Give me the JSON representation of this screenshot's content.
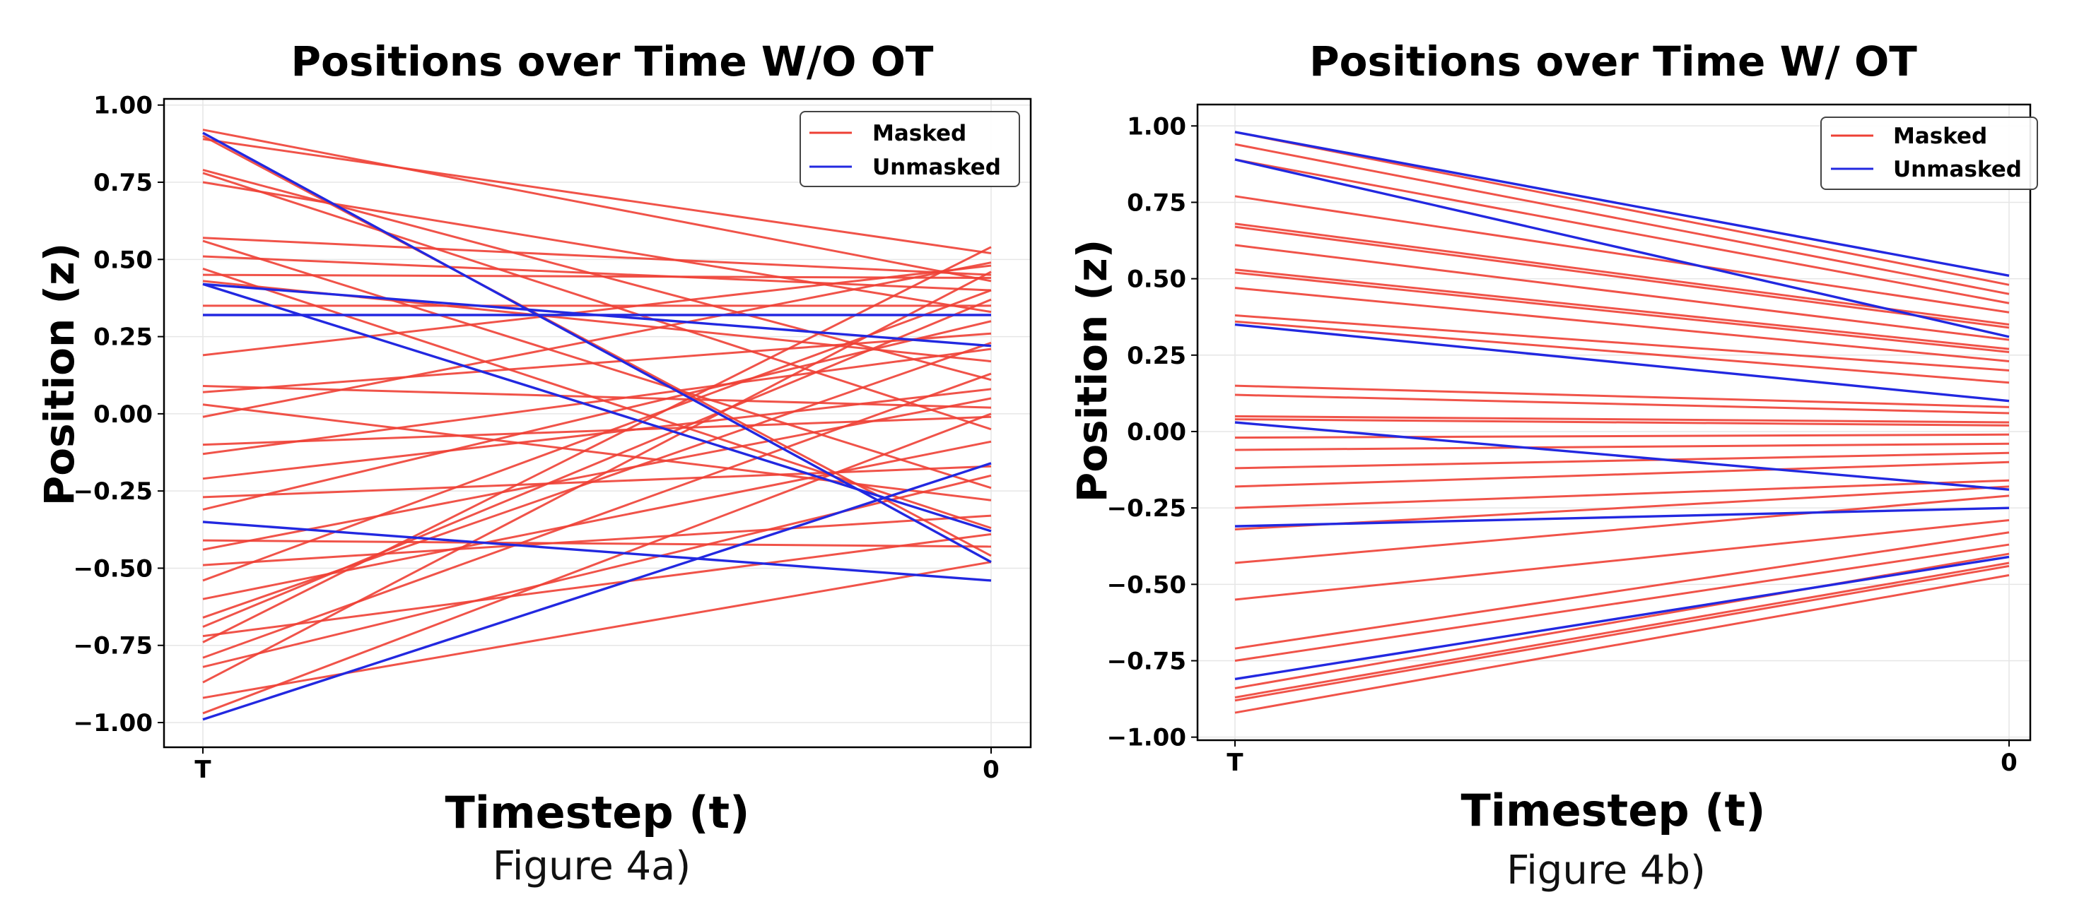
{
  "colors": {
    "masked": "#ee4035",
    "unmasked": "#2228e0",
    "grid": "#e6e6e6",
    "frame": "#000000"
  },
  "chart_data": [
    {
      "type": "line",
      "title": "Positions over Time W/O OT",
      "xlabel": "Timestep (t)",
      "ylabel": "Position (z)",
      "caption": "Figure 4a)",
      "categories": [
        "T",
        "0"
      ],
      "ylim": [
        -1.08,
        1.02
      ],
      "yticks": [
        "1.00",
        "0.75",
        "0.50",
        "0.25",
        "0.00",
        "−0.25",
        "−0.50",
        "−0.75",
        "−1.00"
      ],
      "ytick_values": [
        1.0,
        0.75,
        0.5,
        0.25,
        0.0,
        -0.25,
        -0.5,
        -0.75,
        -1.0
      ],
      "grid": true,
      "legend_position": "top-right",
      "legend": [
        "Masked",
        "Unmasked"
      ],
      "series": [
        {
          "group": "Masked",
          "values": [
            0.92,
            0.43
          ]
        },
        {
          "group": "Masked",
          "values": [
            0.9,
            -0.46
          ]
        },
        {
          "group": "Masked",
          "values": [
            0.89,
            0.52
          ]
        },
        {
          "group": "Masked",
          "values": [
            0.79,
            0.11
          ]
        },
        {
          "group": "Masked",
          "values": [
            0.78,
            -0.05
          ]
        },
        {
          "group": "Masked",
          "values": [
            0.75,
            0.33
          ]
        },
        {
          "group": "Masked",
          "values": [
            0.57,
            0.45
          ]
        },
        {
          "group": "Masked",
          "values": [
            0.56,
            -0.24
          ]
        },
        {
          "group": "Masked",
          "values": [
            0.51,
            0.4
          ]
        },
        {
          "group": "Masked",
          "values": [
            0.47,
            -0.37
          ]
        },
        {
          "group": "Masked",
          "values": [
            0.45,
            0.44
          ]
        },
        {
          "group": "Masked",
          "values": [
            0.43,
            0.17
          ]
        },
        {
          "group": "Masked",
          "values": [
            0.35,
            0.35
          ]
        },
        {
          "group": "Masked",
          "values": [
            0.19,
            0.48
          ]
        },
        {
          "group": "Masked",
          "values": [
            0.09,
            0.02
          ]
        },
        {
          "group": "Masked",
          "values": [
            0.07,
            0.26
          ]
        },
        {
          "group": "Masked",
          "values": [
            0.03,
            -0.28
          ]
        },
        {
          "group": "Masked",
          "values": [
            -0.01,
            0.49
          ]
        },
        {
          "group": "Masked",
          "values": [
            -0.1,
            -0.01
          ]
        },
        {
          "group": "Masked",
          "values": [
            -0.13,
            0.21
          ]
        },
        {
          "group": "Masked",
          "values": [
            -0.21,
            0.08
          ]
        },
        {
          "group": "Masked",
          "values": [
            -0.27,
            -0.17
          ]
        },
        {
          "group": "Masked",
          "values": [
            -0.31,
            0.3
          ]
        },
        {
          "group": "Masked",
          "values": [
            -0.41,
            -0.43
          ]
        },
        {
          "group": "Masked",
          "values": [
            -0.44,
            0.05
          ]
        },
        {
          "group": "Masked",
          "values": [
            -0.49,
            -0.33
          ]
        },
        {
          "group": "Masked",
          "values": [
            -0.54,
            0.4
          ]
        },
        {
          "group": "Masked",
          "values": [
            -0.6,
            -0.09
          ]
        },
        {
          "group": "Masked",
          "values": [
            -0.66,
            0.23
          ]
        },
        {
          "group": "Masked",
          "values": [
            -0.69,
            0.37
          ]
        },
        {
          "group": "Masked",
          "values": [
            -0.72,
            -0.39
          ]
        },
        {
          "group": "Masked",
          "values": [
            -0.74,
            0.54
          ]
        },
        {
          "group": "Masked",
          "values": [
            -0.79,
            0.13
          ]
        },
        {
          "group": "Masked",
          "values": [
            -0.82,
            -0.2
          ]
        },
        {
          "group": "Masked",
          "values": [
            -0.87,
            0.46
          ]
        },
        {
          "group": "Masked",
          "values": [
            -0.92,
            -0.48
          ]
        },
        {
          "group": "Masked",
          "values": [
            -0.97,
            0.0
          ]
        },
        {
          "group": "Unmasked",
          "values": [
            0.91,
            -0.48
          ]
        },
        {
          "group": "Unmasked",
          "values": [
            0.42,
            -0.38
          ]
        },
        {
          "group": "Unmasked",
          "values": [
            0.42,
            0.22
          ]
        },
        {
          "group": "Unmasked",
          "values": [
            0.32,
            0.32
          ]
        },
        {
          "group": "Unmasked",
          "values": [
            -0.35,
            -0.54
          ]
        },
        {
          "group": "Unmasked",
          "values": [
            -0.99,
            -0.16
          ]
        }
      ]
    },
    {
      "type": "line",
      "title": "Positions over Time W/ OT",
      "xlabel": "Timestep (t)",
      "ylabel": "Position (z)",
      "caption": "Figure 4b)",
      "categories": [
        "T",
        "0"
      ],
      "ylim": [
        -1.01,
        1.07
      ],
      "yticks": [
        "1.00",
        "0.75",
        "0.50",
        "0.25",
        "0.00",
        "−0.25",
        "−0.50",
        "−0.75",
        "−1.00"
      ],
      "ytick_values": [
        1.0,
        0.75,
        0.5,
        0.25,
        0.0,
        -0.25,
        -0.5,
        -0.75,
        -1.0
      ],
      "grid": true,
      "legend_position": "top-right",
      "legend": [
        "Masked",
        "Unmasked"
      ],
      "series": [
        {
          "group": "Masked",
          "values": [
            0.98,
            0.48
          ]
        },
        {
          "group": "Masked",
          "values": [
            0.94,
            0.45
          ]
        },
        {
          "group": "Masked",
          "values": [
            0.89,
            0.42
          ]
        },
        {
          "group": "Masked",
          "values": [
            0.77,
            0.39
          ]
        },
        {
          "group": "Masked",
          "values": [
            0.68,
            0.35
          ]
        },
        {
          "group": "Masked",
          "values": [
            0.67,
            0.34
          ]
        },
        {
          "group": "Masked",
          "values": [
            0.61,
            0.3
          ]
        },
        {
          "group": "Masked",
          "values": [
            0.53,
            0.27
          ]
        },
        {
          "group": "Masked",
          "values": [
            0.52,
            0.26
          ]
        },
        {
          "group": "Masked",
          "values": [
            0.47,
            0.23
          ]
        },
        {
          "group": "Masked",
          "values": [
            0.38,
            0.2
          ]
        },
        {
          "group": "Masked",
          "values": [
            0.36,
            0.16
          ]
        },
        {
          "group": "Masked",
          "values": [
            0.15,
            0.08
          ]
        },
        {
          "group": "Masked",
          "values": [
            0.12,
            0.06
          ]
        },
        {
          "group": "Masked",
          "values": [
            0.05,
            0.03
          ]
        },
        {
          "group": "Masked",
          "values": [
            0.04,
            0.02
          ]
        },
        {
          "group": "Masked",
          "values": [
            -0.02,
            -0.01
          ]
        },
        {
          "group": "Masked",
          "values": [
            -0.06,
            -0.04
          ]
        },
        {
          "group": "Masked",
          "values": [
            -0.12,
            -0.07
          ]
        },
        {
          "group": "Masked",
          "values": [
            -0.18,
            -0.1
          ]
        },
        {
          "group": "Masked",
          "values": [
            -0.25,
            -0.16
          ]
        },
        {
          "group": "Masked",
          "values": [
            -0.32,
            -0.18
          ]
        },
        {
          "group": "Masked",
          "values": [
            -0.43,
            -0.21
          ]
        },
        {
          "group": "Masked",
          "values": [
            -0.55,
            -0.29
          ]
        },
        {
          "group": "Masked",
          "values": [
            -0.71,
            -0.33
          ]
        },
        {
          "group": "Masked",
          "values": [
            -0.75,
            -0.37
          ]
        },
        {
          "group": "Masked",
          "values": [
            -0.84,
            -0.4
          ]
        },
        {
          "group": "Masked",
          "values": [
            -0.87,
            -0.43
          ]
        },
        {
          "group": "Masked",
          "values": [
            -0.88,
            -0.44
          ]
        },
        {
          "group": "Masked",
          "values": [
            -0.92,
            -0.47
          ]
        },
        {
          "group": "Unmasked",
          "values": [
            0.98,
            0.51
          ]
        },
        {
          "group": "Unmasked",
          "values": [
            0.89,
            0.31
          ]
        },
        {
          "group": "Unmasked",
          "values": [
            0.35,
            0.1
          ]
        },
        {
          "group": "Unmasked",
          "values": [
            0.03,
            -0.19
          ]
        },
        {
          "group": "Unmasked",
          "values": [
            -0.31,
            -0.25
          ]
        },
        {
          "group": "Unmasked",
          "values": [
            -0.81,
            -0.41
          ]
        }
      ]
    }
  ]
}
